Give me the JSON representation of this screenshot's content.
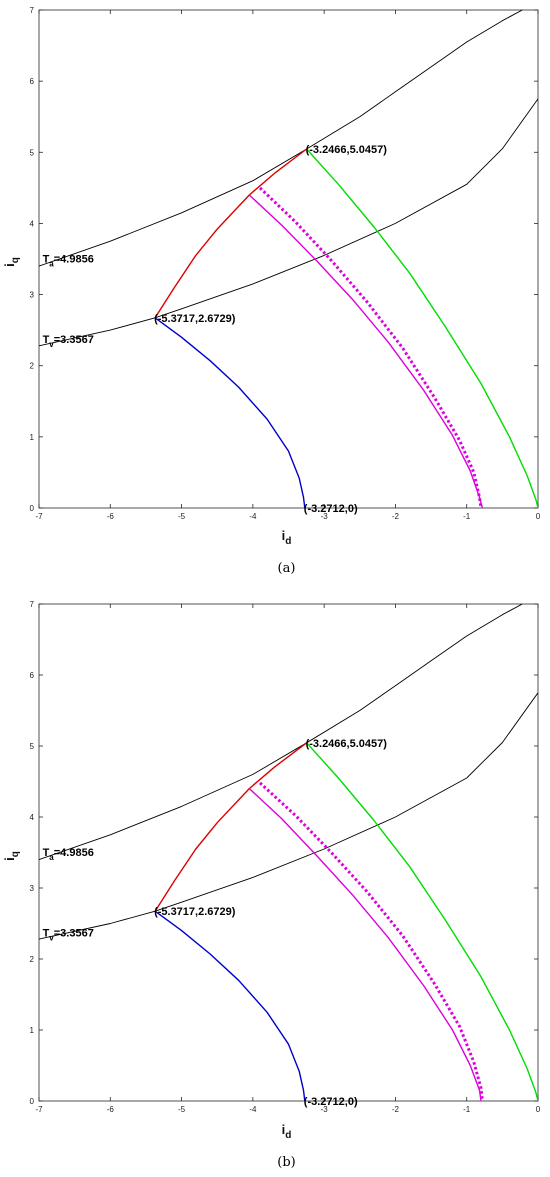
{
  "chart_data": [
    {
      "type": "line",
      "caption": "(a)",
      "xlabel": "i",
      "xlabel_sub": "d",
      "ylabel": "i",
      "ylabel_sub": "q",
      "xlim": [
        -7,
        0
      ],
      "ylim": [
        0,
        7
      ],
      "x_ticks": [
        -7,
        -6,
        -5,
        -4,
        -3,
        -2,
        -1,
        0
      ],
      "y_ticks": [
        0,
        1,
        2,
        3,
        4,
        5,
        6,
        7
      ],
      "grid": false,
      "series": [
        {
          "color": "#000000",
          "style": "solid",
          "x": [
            -7,
            -6,
            -5,
            -4,
            -3.2466,
            -2.5,
            -2,
            -1.5,
            -1,
            -0.5,
            -0.22
          ],
          "y": [
            3.4,
            3.75,
            4.15,
            4.6,
            5.0457,
            5.5,
            5.85,
            6.2,
            6.55,
            6.85,
            7.0
          ]
        },
        {
          "color": "#000000",
          "style": "solid",
          "x": [
            -7,
            -6,
            -5.3717,
            -5,
            -4,
            -3,
            -2,
            -1,
            -0.5,
            0
          ],
          "y": [
            2.28,
            2.5,
            2.6729,
            2.8,
            3.15,
            3.55,
            4.0,
            4.55,
            5.05,
            5.75
          ]
        },
        {
          "color": "#dd0000",
          "style": "solid",
          "x": [
            -5.3717,
            -5.1,
            -4.8,
            -4.5,
            -4.05,
            -3.7,
            -3.2466
          ],
          "y": [
            2.6729,
            3.1,
            3.55,
            3.92,
            4.4,
            4.7,
            5.0457
          ]
        },
        {
          "color": "#0000cc",
          "style": "solid",
          "x": [
            -5.3717,
            -5.0,
            -4.6,
            -4.2,
            -3.8,
            -3.5,
            -3.35,
            -3.29,
            -3.2712
          ],
          "y": [
            2.6729,
            2.4,
            2.07,
            1.7,
            1.25,
            0.8,
            0.42,
            0.15,
            0.0
          ]
        },
        {
          "color": "#00dd00",
          "style": "solid",
          "x": [
            -3.2466,
            -2.8,
            -2.3,
            -1.8,
            -1.3,
            -0.8,
            -0.4,
            -0.15,
            -0.03,
            0.0
          ],
          "y": [
            5.0457,
            4.55,
            3.95,
            3.3,
            2.55,
            1.75,
            1.0,
            0.45,
            0.12,
            0.0
          ]
        },
        {
          "color": "#dd00dd",
          "style": "solid",
          "x": [
            -4.05,
            -3.6,
            -3.1,
            -2.6,
            -2.1,
            -1.6,
            -1.2,
            -0.95,
            -0.82,
            -0.78
          ],
          "y": [
            4.4,
            3.98,
            3.47,
            2.93,
            2.33,
            1.65,
            1.02,
            0.52,
            0.15,
            0.0
          ]
        },
        {
          "color": "#dd00dd",
          "style": "dotted",
          "x": [
            -3.9,
            -3.4,
            -2.9,
            -2.4,
            -1.9,
            -1.45,
            -1.1,
            -0.9,
            -0.82,
            -0.8
          ],
          "y": [
            4.5,
            4.02,
            3.48,
            2.9,
            2.25,
            1.55,
            0.95,
            0.5,
            0.15,
            0.0
          ]
        }
      ],
      "annotations": [
        {
          "text": "(-3.2466,5.0457)",
          "x": -3.2466,
          "y": 5.0457
        },
        {
          "text": "(-5.3717,2.6729)",
          "x": -5.3717,
          "y": 2.6729
        },
        {
          "text": "(-3.2712,0)",
          "x": -3.2712,
          "y": 0.0
        }
      ],
      "curve_labels": [
        {
          "main": "T",
          "sub": "a",
          "rest": "=4.9856",
          "x": -6.95,
          "y": 3.45
        },
        {
          "main": "T",
          "sub": "v",
          "rest": "=3.3567",
          "x": -6.95,
          "y": 2.32
        }
      ]
    },
    {
      "type": "line",
      "caption": "(b)",
      "xlabel": "i",
      "xlabel_sub": "d",
      "ylabel": "i",
      "ylabel_sub": "q",
      "xlim": [
        -7,
        0
      ],
      "ylim": [
        0,
        7
      ],
      "x_ticks": [
        -7,
        -6,
        -5,
        -4,
        -3,
        -2,
        -1,
        0
      ],
      "y_ticks": [
        0,
        1,
        2,
        3,
        4,
        5,
        6,
        7
      ],
      "grid": false,
      "series": [
        {
          "color": "#000000",
          "style": "solid",
          "x": [
            -7,
            -6,
            -5,
            -4,
            -3.2466,
            -2.5,
            -2,
            -1.5,
            -1,
            -0.5,
            -0.22
          ],
          "y": [
            3.4,
            3.75,
            4.15,
            4.6,
            5.0457,
            5.5,
            5.85,
            6.2,
            6.55,
            6.85,
            7.0
          ]
        },
        {
          "color": "#000000",
          "style": "solid",
          "x": [
            -7,
            -6,
            -5.3717,
            -5,
            -4,
            -3,
            -2,
            -1,
            -0.5,
            0
          ],
          "y": [
            2.28,
            2.5,
            2.6729,
            2.8,
            3.15,
            3.55,
            4.0,
            4.55,
            5.05,
            5.75
          ]
        },
        {
          "color": "#dd0000",
          "style": "solid",
          "x": [
            -5.3717,
            -5.1,
            -4.8,
            -4.5,
            -4.05,
            -3.7,
            -3.2466
          ],
          "y": [
            2.6729,
            3.1,
            3.55,
            3.92,
            4.4,
            4.7,
            5.0457
          ]
        },
        {
          "color": "#0000cc",
          "style": "solid",
          "x": [
            -5.3717,
            -5.0,
            -4.6,
            -4.2,
            -3.8,
            -3.5,
            -3.35,
            -3.29,
            -3.2712
          ],
          "y": [
            2.6729,
            2.4,
            2.07,
            1.7,
            1.25,
            0.8,
            0.42,
            0.15,
            0.0
          ]
        },
        {
          "color": "#00dd00",
          "style": "solid",
          "x": [
            -3.2466,
            -2.8,
            -2.3,
            -1.8,
            -1.3,
            -0.8,
            -0.4,
            -0.15,
            -0.03,
            0.0
          ],
          "y": [
            5.0457,
            4.55,
            3.95,
            3.3,
            2.55,
            1.75,
            1.0,
            0.45,
            0.12,
            0.0
          ]
        },
        {
          "color": "#dd00dd",
          "style": "solid",
          "x": [
            -4.05,
            -3.6,
            -3.1,
            -2.6,
            -2.1,
            -1.6,
            -1.2,
            -0.95,
            -0.82,
            -0.8
          ],
          "y": [
            4.4,
            3.98,
            3.45,
            2.9,
            2.3,
            1.62,
            1.0,
            0.5,
            0.15,
            0.0
          ]
        },
        {
          "color": "#dd00dd",
          "style": "dotted",
          "x": [
            -3.9,
            -3.4,
            -2.9,
            -2.4,
            -1.9,
            -1.45,
            -1.1,
            -0.9,
            -0.8,
            -0.78
          ],
          "y": [
            4.48,
            4.02,
            3.5,
            2.95,
            2.33,
            1.65,
            1.05,
            0.55,
            0.18,
            0.0
          ]
        }
      ],
      "annotations": [
        {
          "text": "(-3.2466,5.0457)",
          "x": -3.2466,
          "y": 5.0457
        },
        {
          "text": "(-5.3717,2.6729)",
          "x": -5.3717,
          "y": 2.6729
        },
        {
          "text": "(-3.2712,0)",
          "x": -3.2712,
          "y": 0.0
        }
      ],
      "curve_labels": [
        {
          "main": "T",
          "sub": "a",
          "rest": "=4.9856",
          "x": -6.95,
          "y": 3.45
        },
        {
          "main": "T",
          "sub": "v",
          "rest": "=3.3567",
          "x": -6.95,
          "y": 2.32
        }
      ]
    }
  ]
}
